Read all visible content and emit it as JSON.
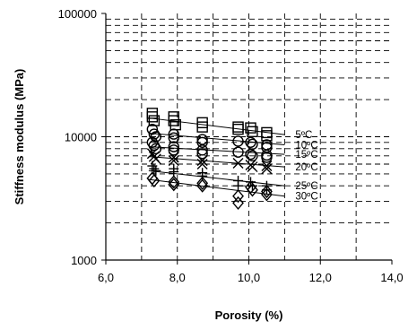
{
  "chart_data": {
    "type": "scatter",
    "title": "",
    "xlabel": "Porosity (%)",
    "ylabel": "Stiffness modulus (MPa)",
    "xlim": [
      6.0,
      14.0
    ],
    "ylim": [
      1000,
      100000
    ],
    "yscale": "log",
    "grid": true,
    "x_tick_values": [
      6,
      8,
      10,
      12,
      14
    ],
    "x_tick_labels": [
      "6,0",
      "8,0",
      "10,0",
      "12,0",
      "14,0"
    ],
    "y_tick_values": [
      1000,
      10000,
      100000
    ],
    "y_tick_labels": [
      "1000",
      "10000",
      "100000"
    ],
    "x_minor_gridlines": [
      7,
      9,
      11,
      13
    ],
    "series": [
      {
        "name": "5ºC",
        "marker": "square",
        "points": [
          [
            7.3,
            15500
          ],
          [
            7.3,
            14500
          ],
          [
            7.35,
            13500
          ],
          [
            7.9,
            14500
          ],
          [
            7.9,
            13500
          ],
          [
            7.95,
            12500
          ],
          [
            8.7,
            13000
          ],
          [
            8.7,
            12000
          ],
          [
            9.7,
            12000
          ],
          [
            9.7,
            11500
          ],
          [
            10.05,
            11800
          ],
          [
            10.1,
            11000
          ],
          [
            10.5,
            10800
          ],
          [
            10.5,
            10200
          ]
        ],
        "fit": [
          [
            7.2,
            14200
          ],
          [
            11.0,
            10400
          ]
        ]
      },
      {
        "name": "10ºC",
        "marker": "circle",
        "points": [
          [
            7.3,
            11500
          ],
          [
            7.35,
            10500
          ],
          [
            7.4,
            10000
          ],
          [
            7.9,
            10500
          ],
          [
            7.9,
            9800
          ],
          [
            8.7,
            9500
          ],
          [
            8.7,
            9000
          ],
          [
            9.7,
            9200
          ],
          [
            10.05,
            9000
          ],
          [
            10.1,
            8700
          ],
          [
            10.5,
            8600
          ],
          [
            10.5,
            8200
          ]
        ],
        "fit": [
          [
            7.2,
            10700
          ],
          [
            11.0,
            8600
          ]
        ]
      },
      {
        "name": "15ºC",
        "marker": "circle",
        "points": [
          [
            7.3,
            9000
          ],
          [
            7.35,
            8500
          ],
          [
            7.4,
            8000
          ],
          [
            7.9,
            8300
          ],
          [
            7.9,
            7800
          ],
          [
            8.7,
            7800
          ],
          [
            8.7,
            7300
          ],
          [
            9.7,
            7500
          ],
          [
            10.05,
            7200
          ],
          [
            10.1,
            7000
          ],
          [
            10.5,
            7100
          ],
          [
            10.5,
            6800
          ]
        ],
        "fit": [
          [
            7.2,
            8300
          ],
          [
            11.0,
            7200
          ]
        ]
      },
      {
        "name": "20ºC",
        "marker": "x",
        "points": [
          [
            7.3,
            7300
          ],
          [
            7.35,
            6900
          ],
          [
            7.4,
            6600
          ],
          [
            7.9,
            6800
          ],
          [
            7.9,
            6400
          ],
          [
            8.7,
            6400
          ],
          [
            8.7,
            6000
          ],
          [
            9.7,
            6100
          ],
          [
            10.05,
            5900
          ],
          [
            10.1,
            5700
          ],
          [
            10.5,
            5800
          ],
          [
            10.5,
            5500
          ]
        ],
        "fit": [
          [
            7.2,
            6900
          ],
          [
            11.0,
            5700
          ]
        ]
      },
      {
        "name": "25ºC",
        "marker": "plus",
        "points": [
          [
            7.3,
            5800
          ],
          [
            7.35,
            5500
          ],
          [
            7.4,
            5300
          ],
          [
            7.9,
            5500
          ],
          [
            7.9,
            5200
          ],
          [
            8.7,
            5100
          ],
          [
            8.7,
            4800
          ],
          [
            9.7,
            4400
          ],
          [
            9.7,
            4000
          ],
          [
            10.05,
            4300
          ],
          [
            10.1,
            4000
          ],
          [
            10.5,
            4000
          ],
          [
            10.5,
            3700
          ]
        ],
        "fit": [
          [
            7.2,
            5300
          ],
          [
            11.0,
            4000
          ]
        ]
      },
      {
        "name": "30ºC",
        "marker": "diamond",
        "points": [
          [
            7.3,
            4600
          ],
          [
            7.35,
            4400
          ],
          [
            7.9,
            4300
          ],
          [
            7.9,
            4100
          ],
          [
            8.7,
            4200
          ],
          [
            8.7,
            4000
          ],
          [
            9.7,
            3300
          ],
          [
            9.7,
            2900
          ],
          [
            10.05,
            3900
          ],
          [
            10.1,
            3700
          ],
          [
            10.5,
            3600
          ],
          [
            10.5,
            3400
          ]
        ],
        "fit": [
          [
            7.2,
            4500
          ],
          [
            11.0,
            3300
          ]
        ]
      }
    ]
  }
}
